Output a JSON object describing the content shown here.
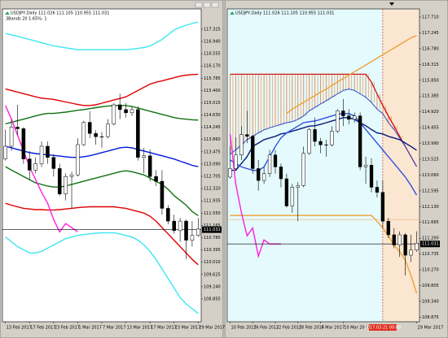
{
  "chart_data": [
    {
      "type": "candlestick",
      "title": "USDJPY,Daily  111.026 111.105 110.955 111.031",
      "subtitle": "3Bands 20 1.65%: 1",
      "categories": [
        "13 Feb 2017",
        null,
        null,
        null,
        "17 Feb 2017",
        null,
        null,
        null,
        "23 Feb 2017",
        null,
        null,
        null,
        "1 Mar 2017",
        null,
        null,
        null,
        "7 Mar 2017",
        null,
        null,
        null,
        "13 Mar 2017",
        null,
        null,
        null,
        "17 Mar 2017",
        null,
        null,
        null,
        "23 Mar 2017",
        null,
        null,
        null,
        "29 Mar 2017"
      ],
      "open": [
        113.25,
        113.65,
        114.25,
        114.2,
        113.25,
        112.9,
        113.1,
        113.65,
        113.3,
        112.95,
        112.15,
        112.7,
        112.75,
        113.7,
        114.4,
        114.05,
        113.95,
        113.95,
        114.35,
        114.95,
        114.8,
        114.7,
        114.8,
        113.3,
        113.35,
        112.7,
        112.55,
        111.7,
        111.3,
        111.0,
        111.3,
        110.7,
        110.85
      ],
      "high": [
        114.17,
        114.5,
        114.95,
        114.25,
        113.5,
        113.3,
        113.8,
        113.8,
        113.4,
        113.1,
        112.8,
        112.85,
        113.9,
        114.45,
        114.75,
        114.15,
        114.1,
        114.5,
        115.0,
        115.3,
        115.0,
        114.9,
        114.9,
        113.6,
        113.55,
        112.9,
        112.9,
        111.8,
        111.5,
        111.4,
        111.35,
        111.3,
        111.4
      ],
      "low": [
        113.2,
        113.5,
        114.0,
        113.1,
        112.6,
        112.8,
        113.0,
        113.1,
        112.7,
        112.1,
        111.95,
        111.7,
        112.7,
        113.65,
        113.9,
        113.7,
        113.6,
        113.9,
        114.3,
        114.5,
        114.55,
        114.6,
        113.2,
        112.8,
        112.55,
        112.4,
        111.5,
        111.2,
        110.9,
        110.65,
        110.1,
        110.5,
        110.8
      ],
      "close": [
        113.65,
        114.25,
        114.2,
        113.25,
        112.9,
        113.1,
        113.65,
        113.3,
        112.95,
        112.15,
        112.7,
        112.75,
        113.7,
        114.4,
        114.05,
        113.95,
        113.95,
        114.35,
        114.95,
        114.8,
        114.7,
        114.8,
        113.3,
        113.35,
        112.7,
        112.55,
        111.7,
        111.3,
        111.0,
        111.3,
        110.7,
        110.85,
        111.05
      ],
      "series": [
        {
          "color": "#3ee6f0",
          "values": [
            117.19,
            117.15,
            117.1,
            117.05,
            117.0,
            116.95,
            116.9,
            116.85,
            116.8,
            116.77,
            116.74,
            116.71,
            116.68,
            116.68,
            116.68,
            116.68,
            116.68,
            116.68,
            116.68,
            116.68,
            116.68,
            116.7,
            116.72,
            116.75,
            116.8,
            116.9,
            117.0,
            117.15,
            117.3,
            117.38,
            117.45,
            117.5,
            117.55
          ]
        },
        {
          "color": "#e00000",
          "values": [
            115.45,
            115.4,
            115.35,
            115.3,
            115.25,
            115.2,
            115.16,
            115.14,
            115.12,
            115.08,
            115.04,
            115.0,
            114.96,
            114.93,
            114.93,
            114.95,
            115.0,
            115.05,
            115.1,
            115.15,
            115.2,
            115.3,
            115.4,
            115.5,
            115.6,
            115.66,
            115.7,
            115.75,
            115.8,
            115.85,
            115.88,
            115.9,
            115.91
          ]
        },
        {
          "color": "#107010",
          "values": [
            114.35,
            114.4,
            114.45,
            114.5,
            114.55,
            114.6,
            114.65,
            114.68,
            114.68,
            114.7,
            114.72,
            114.75,
            114.78,
            114.8,
            114.83,
            114.86,
            114.89,
            114.91,
            114.93,
            114.93,
            114.93,
            114.9,
            114.85,
            114.8,
            114.75,
            114.7,
            114.65,
            114.6,
            114.55,
            114.52,
            114.5,
            114.48,
            114.47
          ]
        },
        {
          "color": "#0018e0",
          "values": [
            113.65,
            113.6,
            113.55,
            113.5,
            113.45,
            113.42,
            113.4,
            113.38,
            113.36,
            113.34,
            113.32,
            113.3,
            113.3,
            113.32,
            113.35,
            113.4,
            113.45,
            113.5,
            113.55,
            113.6,
            113.62,
            113.6,
            113.55,
            113.5,
            113.45,
            113.4,
            113.35,
            113.3,
            113.25,
            113.18,
            113.12,
            113.05,
            113.01
          ]
        },
        {
          "color": "#107010",
          "values": [
            113.01,
            112.9,
            112.8,
            112.7,
            112.6,
            112.5,
            112.45,
            112.4,
            112.37,
            112.37,
            112.4,
            112.45,
            112.5,
            112.55,
            112.6,
            112.65,
            112.7,
            112.75,
            112.8,
            112.85,
            112.88,
            112.85,
            112.8,
            112.75,
            112.65,
            112.55,
            112.45,
            112.3,
            112.1,
            111.95,
            111.8,
            111.6,
            111.47
          ]
        },
        {
          "color": "#e00000",
          "values": [
            111.86,
            111.8,
            111.75,
            111.7,
            111.68,
            111.66,
            111.66,
            111.65,
            111.65,
            111.66,
            111.68,
            111.7,
            111.72,
            111.74,
            111.75,
            111.75,
            111.75,
            111.75,
            111.75,
            111.72,
            111.7,
            111.65,
            111.6,
            111.55,
            111.45,
            111.3,
            111.1,
            110.9,
            110.7,
            110.5,
            110.3,
            110.1,
            109.93
          ]
        },
        {
          "color": "#3ee6f0",
          "values": [
            110.8,
            110.65,
            110.5,
            110.4,
            110.3,
            110.3,
            110.35,
            110.45,
            110.55,
            110.65,
            110.75,
            110.8,
            110.85,
            110.88,
            110.9,
            110.92,
            110.93,
            110.93,
            110.93,
            110.9,
            110.85,
            110.8,
            110.7,
            110.55,
            110.35,
            110.1,
            109.8,
            109.5,
            109.2,
            108.9,
            108.7,
            108.55,
            108.4
          ]
        },
        {
          "color": "#ff20e0",
          "values": [
            114.93,
            114.5,
            114.0,
            113.5,
            113.0,
            112.6,
            112.2,
            111.86,
            111.35,
            110.96,
            111.22,
            111.1,
            110.96,
            null,
            null,
            null,
            null,
            null,
            null,
            null,
            null,
            null,
            null,
            null,
            null,
            null,
            null,
            null,
            null,
            null,
            null,
            null,
            null
          ]
        }
      ],
      "ylim": [
        108.14,
        117.96
      ],
      "yticks": [
        117.325,
        {
          "value": 116.94,
          "label": "116.940"
        },
        116.555,
        {
          "value": 116.17,
          "label": "116.170"
        },
        115.785,
        {
          "value": 115.4,
          "label": "115.400"
        },
        115.015,
        {
          "value": 114.63,
          "label": "114.630"
        },
        114.245,
        {
          "value": 113.86,
          "label": "113.860"
        },
        113.475,
        {
          "value": 113.09,
          "label": "113.090"
        },
        112.705,
        {
          "value": 112.32,
          "label": "112.320"
        },
        111.935,
        {
          "value": 111.55,
          "label": "111.550"
        },
        111.165,
        {
          "value": 110.78,
          "label": "110.780"
        },
        110.395,
        {
          "value": 110.01,
          "label": "110.010"
        },
        109.625,
        {
          "value": 109.24,
          "label": "109.240"
        },
        108.855
      ],
      "last_price": 111.031,
      "background": "#ffffff",
      "up_color": "#ffffff",
      "down_color": "#000000"
    },
    {
      "type": "candlestick",
      "title": "USDJPY,Daily  111.026 111.105 110.955 111.031",
      "categories": [
        "10 Feb 2017",
        null,
        null,
        null,
        "16 Feb 2017",
        null,
        null,
        null,
        "22 Feb 2017",
        null,
        null,
        null,
        "28 Feb 2017",
        null,
        null,
        null,
        "6 Mar 2017",
        null,
        null,
        null,
        "10 Mar 2017",
        null,
        null,
        null,
        null,
        null,
        null,
        null,
        null,
        null,
        null,
        null,
        null,
        "29 Mar 2017"
      ],
      "open": [
        113.0,
        113.25,
        113.65,
        114.25,
        114.2,
        113.25,
        112.9,
        113.1,
        113.65,
        113.3,
        112.95,
        112.15,
        112.7,
        112.75,
        113.7,
        114.4,
        114.05,
        113.95,
        113.95,
        114.35,
        114.95,
        114.8,
        114.7,
        114.8,
        113.3,
        113.35,
        112.7,
        112.55,
        111.7,
        111.3,
        111.0,
        111.3,
        110.7,
        110.85
      ],
      "high": [
        113.9,
        114.17,
        114.5,
        114.95,
        114.25,
        113.5,
        113.3,
        113.8,
        113.8,
        113.4,
        113.1,
        112.8,
        112.85,
        113.9,
        114.45,
        114.75,
        114.15,
        114.1,
        114.5,
        115.0,
        115.3,
        115.0,
        114.9,
        114.9,
        113.6,
        113.55,
        112.9,
        112.9,
        111.8,
        111.5,
        111.4,
        111.35,
        111.3,
        111.4
      ],
      "low": [
        112.95,
        113.2,
        113.5,
        114.0,
        113.1,
        112.6,
        112.8,
        113.0,
        113.1,
        112.7,
        112.1,
        111.95,
        111.7,
        112.7,
        113.65,
        113.9,
        113.7,
        113.6,
        113.9,
        114.3,
        114.5,
        114.55,
        114.6,
        113.2,
        112.8,
        112.55,
        112.4,
        111.5,
        111.2,
        110.9,
        110.65,
        110.1,
        110.5,
        110.8
      ],
      "close": [
        113.25,
        113.65,
        114.25,
        114.2,
        113.25,
        112.9,
        113.1,
        113.65,
        113.3,
        112.95,
        112.15,
        112.7,
        112.75,
        113.7,
        114.4,
        114.05,
        113.95,
        113.95,
        114.35,
        114.95,
        114.8,
        114.7,
        114.8,
        113.3,
        113.35,
        112.7,
        112.55,
        111.7,
        111.3,
        111.0,
        111.3,
        110.7,
        110.85,
        111.05
      ],
      "cloud": {
        "hatch_color": "#e8864a",
        "upper": {
          "color": "#d00000",
          "values": [
            116.03,
            116.03,
            116.03,
            116.03,
            116.03,
            116.03,
            116.03,
            116.03,
            116.03,
            116.03,
            116.03,
            116.03,
            116.03,
            116.03,
            116.03,
            116.03,
            116.03,
            116.03,
            116.03,
            116.03,
            116.03,
            116.03,
            116.03,
            116.03,
            116.03,
            115.8,
            115.45,
            115.11,
            114.8,
            114.5,
            114.2,
            113.9,
            113.6,
            113.31
          ]
        },
        "lower": {
          "color": "#2a48c8",
          "values": [
            113.67,
            113.8,
            113.95,
            114.1,
            114.2,
            114.3,
            114.39,
            114.45,
            114.5,
            114.55,
            114.6,
            114.63,
            114.7,
            114.8,
            114.95,
            115.05,
            115.15,
            115.25,
            115.35,
            115.45,
            115.55,
            115.59,
            115.55,
            115.45,
            115.35,
            115.2,
            115.0,
            114.87,
            114.6,
            114.4,
            114.15,
            113.9,
            113.6,
            113.31
          ]
        }
      },
      "series": [
        {
          "color": "#0a1a7a",
          "values": [
            113.2,
            113.2,
            113.4,
            113.6,
            113.9,
            114.0,
            114.1,
            114.15,
            114.2,
            114.27,
            114.3,
            114.35,
            114.4,
            114.45,
            114.5,
            114.51,
            114.55,
            114.6,
            114.65,
            114.7,
            114.75,
            114.75,
            114.7,
            114.6,
            114.51,
            114.4,
            114.3,
            114.27,
            114.2,
            114.15,
            114.1,
            114.0,
            113.9,
            113.79
          ]
        },
        {
          "color": "#3050e0",
          "values": [
            113.5,
            113.4,
            113.3,
            113.25,
            113.2,
            113.19,
            113.3,
            113.6,
            113.9,
            114.15,
            114.3,
            114.4,
            114.5,
            114.6,
            114.63,
            114.65,
            114.7,
            114.75,
            114.8,
            114.85,
            114.87,
            114.87,
            114.8,
            114.6,
            114.4,
            114.2,
            114.0,
            113.8,
            113.6,
            113.4,
            113.2,
            113.0,
            112.75,
            112.47
          ]
        },
        {
          "color": "#f0a030",
          "values": [
            null,
            null,
            null,
            null,
            null,
            null,
            null,
            null,
            null,
            null,
            114.87,
            115.0,
            115.1,
            115.2,
            115.3,
            115.4,
            115.5,
            115.59,
            115.7,
            115.8,
            115.9,
            116.0,
            116.1,
            116.2,
            116.3,
            116.4,
            116.5,
            116.6,
            116.7,
            116.8,
            116.9,
            117.0,
            117.1,
            117.16
          ]
        },
        {
          "color": "#f0a030",
          "values": [
            111.87,
            111.87,
            111.87,
            111.87,
            111.87,
            111.87,
            111.87,
            111.87,
            111.87,
            111.87,
            111.87,
            111.87,
            111.87,
            111.87,
            111.87,
            111.87,
            111.87,
            111.87,
            111.87,
            111.87,
            111.87,
            111.87,
            111.87,
            111.87,
            111.87,
            111.87,
            111.7,
            111.5,
            111.27,
            111.0,
            110.8,
            110.55,
            110.1,
            109.58
          ]
        },
        {
          "color": "#ff20e0",
          "values": [
            114.27,
            112.8,
            111.95,
            111.27,
            111.5,
            110.67,
            111.15,
            111.03,
            111.03,
            111.03,
            null,
            null,
            null,
            null,
            null,
            null,
            null,
            null,
            null,
            null,
            null,
            null,
            null,
            null,
            null,
            null,
            null,
            null,
            null,
            null,
            null,
            null,
            null,
            null
          ]
        }
      ],
      "hlines": [
        {
          "value": 111.75,
          "color": "#f0b070"
        }
      ],
      "crosshair": {
        "index": 27,
        "label": "2017.03.21 00:00",
        "color": "#e03020",
        "shade": "#fbe6d2"
      },
      "ylim": [
        108.74,
        117.95
      ],
      "yticks": [
        {
          "value": 117.71,
          "label": "117.710"
        },
        117.245,
        {
          "value": 116.78,
          "label": "116.780"
        },
        116.315,
        {
          "value": 115.85,
          "label": "115.850"
        },
        115.385,
        {
          "value": 114.92,
          "label": "114.920"
        },
        114.455,
        {
          "value": 113.99,
          "label": "113.990"
        },
        113.525,
        {
          "value": 113.06,
          "label": "113.060"
        },
        112.595,
        {
          "value": 112.13,
          "label": "112.130"
        },
        111.665,
        {
          "value": 111.2,
          "label": "111.200"
        },
        110.735,
        {
          "value": 110.27,
          "label": "110.270"
        },
        109.805,
        {
          "value": 109.34,
          "label": "109.340"
        },
        108.875
      ],
      "last_price": 111.031,
      "background": "#e4fafc",
      "up_color": "#ffffff",
      "down_color": "#000000"
    }
  ]
}
